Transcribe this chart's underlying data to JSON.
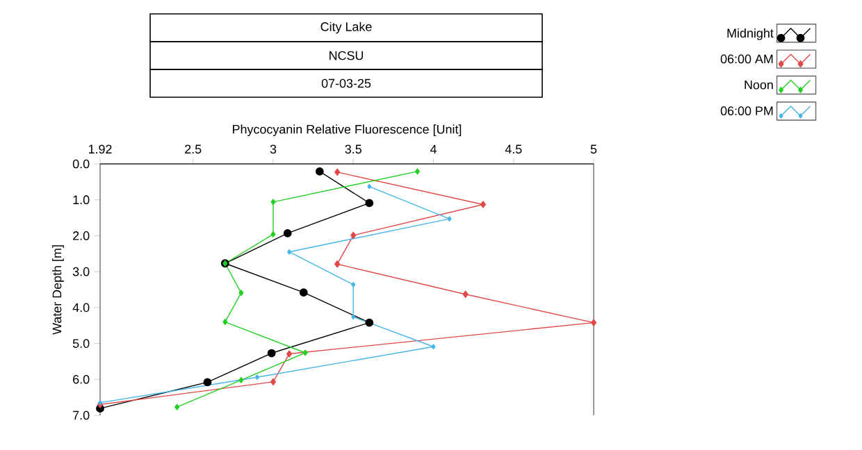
{
  "chart_data": {
    "type": "line",
    "title": "City Lake",
    "subtitle": "NCSU",
    "annotations": [
      "07-03-25"
    ],
    "xlabel": "Phycocyanin Relative Fluorescence [Unit]",
    "ylabel": "Water Depth [m]",
    "xlim": [
      1.92,
      5
    ],
    "xticks": [
      1.92,
      2.5,
      3,
      3.5,
      4,
      4.5,
      5
    ],
    "ylim": [
      7,
      0
    ],
    "yticks": [
      {
        "value": 0,
        "label": "0.0"
      },
      {
        "value": 1,
        "label": "1.0"
      },
      {
        "value": 2,
        "label": "2.0"
      },
      {
        "value": 3,
        "label": "3.0"
      },
      {
        "value": 4,
        "label": "4.0"
      },
      {
        "value": 5,
        "label": "5.0"
      },
      {
        "value": 6,
        "label": "6.0"
      },
      {
        "value": 7,
        "label": "7.0"
      }
    ],
    "legend": "top right",
    "line_style": "solid",
    "grid": false,
    "series": [
      {
        "name": "Midnight",
        "color": "#000000",
        "marker": "circle",
        "x": [
          3.29,
          3.6,
          3.09,
          2.7,
          3.19,
          3.6,
          2.99,
          2.59,
          1.92
        ],
        "values": [
          0.21,
          1.09,
          1.93,
          2.77,
          3.58,
          4.42,
          5.27,
          6.08,
          6.81
        ]
      },
      {
        "name": "06:00 AM",
        "color": "#e04848",
        "marker": "diamond",
        "x": [
          3.4,
          4.31,
          3.5,
          3.4,
          4.2,
          5.0,
          3.1,
          3.0,
          1.92
        ],
        "values": [
          0.23,
          1.13,
          1.99,
          2.79,
          3.63,
          4.42,
          5.29,
          6.07,
          6.7
        ]
      },
      {
        "name": "Noon",
        "color": "#22d022",
        "marker": "diamond",
        "x": [
          3.9,
          3.0,
          3.0,
          2.7,
          2.8,
          2.7,
          3.2,
          2.8,
          2.4
        ],
        "values": [
          0.21,
          1.06,
          1.96,
          2.77,
          3.59,
          4.4,
          5.26,
          6.02,
          6.77
        ]
      },
      {
        "name": "06:00 PM",
        "color": "#45b4e8",
        "marker": "diamond",
        "x": [
          3.6,
          4.1,
          3.1,
          3.5,
          3.5,
          4.0,
          2.9,
          1.92
        ],
        "values": [
          0.63,
          1.53,
          2.45,
          3.36,
          4.26,
          5.09,
          5.94,
          6.65
        ]
      }
    ]
  }
}
